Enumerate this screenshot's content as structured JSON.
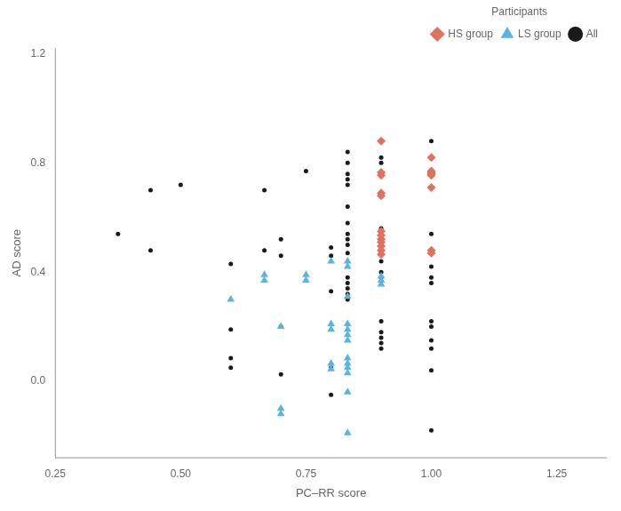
{
  "chart_data": {
    "type": "scatter",
    "xlabel": "PC–RR score",
    "ylabel": "AD score",
    "xlim": [
      0.25,
      1.35
    ],
    "ylim": [
      -0.28,
      1.22
    ],
    "xticks": [
      0.25,
      {
        "value": 0.5,
        "label": "0.50"
      },
      0.75,
      {
        "value": 1.0,
        "label": "1.00"
      },
      1.25
    ],
    "yticks": [
      {
        "value": 0.0,
        "label": "0.0"
      },
      0.4,
      0.8,
      1.2
    ],
    "grid": false,
    "legend": "upper right",
    "legend_title": "Participants",
    "series": [
      {
        "name": "All",
        "color": "#1a1a1a",
        "marker": "point",
        "x": [
          0.375,
          0.44,
          0.44,
          0.5,
          0.6,
          0.6,
          0.6,
          0.6,
          0.667,
          0.667,
          0.7,
          0.7,
          0.7,
          0.7,
          0.75,
          0.8,
          0.8,
          0.8,
          0.8,
          0.8,
          0.833,
          0.833,
          0.833,
          0.833,
          0.833,
          0.833,
          0.833,
          0.833,
          0.833,
          0.833,
          0.833,
          0.833,
          0.833,
          0.833,
          0.833,
          0.833,
          0.9,
          0.9,
          0.9,
          0.9,
          0.9,
          0.9,
          0.9,
          0.9,
          0.9,
          0.9,
          0.9,
          0.9,
          0.9,
          1.0,
          1.0,
          1.0,
          1.0,
          1.0,
          1.0,
          1.0,
          1.0,
          1.0,
          1.0,
          1.0,
          1.0
        ],
        "values": [
          0.54,
          0.7,
          0.48,
          0.72,
          0.43,
          0.19,
          0.085,
          0.05,
          0.7,
          0.48,
          0.52,
          0.46,
          0.2,
          0.025,
          0.77,
          0.49,
          0.46,
          0.33,
          0.05,
          -0.05,
          0.84,
          0.8,
          0.76,
          0.74,
          0.72,
          0.64,
          0.58,
          0.54,
          0.52,
          0.5,
          0.47,
          0.38,
          0.36,
          0.34,
          0.32,
          0.3,
          0.82,
          0.8,
          0.56,
          0.5,
          0.48,
          0.44,
          0.4,
          0.38,
          0.22,
          0.18,
          0.16,
          0.14,
          0.12,
          0.88,
          0.82,
          0.54,
          0.42,
          0.38,
          0.36,
          0.22,
          0.2,
          0.15,
          0.12,
          0.04,
          -0.18
        ]
      },
      {
        "name": "LS group",
        "color": "#5ab4e0",
        "marker": "triangle",
        "x": [
          0.6,
          0.667,
          0.667,
          0.7,
          0.7,
          0.7,
          0.75,
          0.75,
          0.8,
          0.8,
          0.8,
          0.8,
          0.8,
          0.833,
          0.833,
          0.833,
          0.833,
          0.833,
          0.833,
          0.833,
          0.833,
          0.833,
          0.833,
          0.833,
          0.833,
          0.833,
          0.9,
          0.9,
          0.9
        ],
        "values": [
          0.3,
          0.39,
          0.37,
          0.2,
          -0.1,
          -0.12,
          0.39,
          0.37,
          0.44,
          0.21,
          0.19,
          0.065,
          0.045,
          0.44,
          0.42,
          0.31,
          0.21,
          0.19,
          0.17,
          0.15,
          0.085,
          0.065,
          0.05,
          0.03,
          -0.04,
          -0.19,
          0.385,
          0.37,
          0.355
        ]
      },
      {
        "name": "HS group",
        "color": "#e07060",
        "marker": "diamond",
        "x": [
          0.9,
          0.9,
          0.9,
          0.9,
          0.9,
          0.9,
          0.9,
          0.9,
          0.9,
          0.9,
          0.9,
          0.9,
          1.0,
          1.0,
          1.0,
          1.0,
          1.0,
          1.0,
          1.0,
          1.0
        ],
        "values": [
          0.88,
          0.765,
          0.755,
          0.69,
          0.68,
          0.55,
          0.535,
          0.52,
          0.51,
          0.495,
          0.48,
          0.465,
          0.82,
          0.77,
          0.765,
          0.76,
          0.755,
          0.71,
          0.48,
          0.47
        ]
      }
    ]
  }
}
